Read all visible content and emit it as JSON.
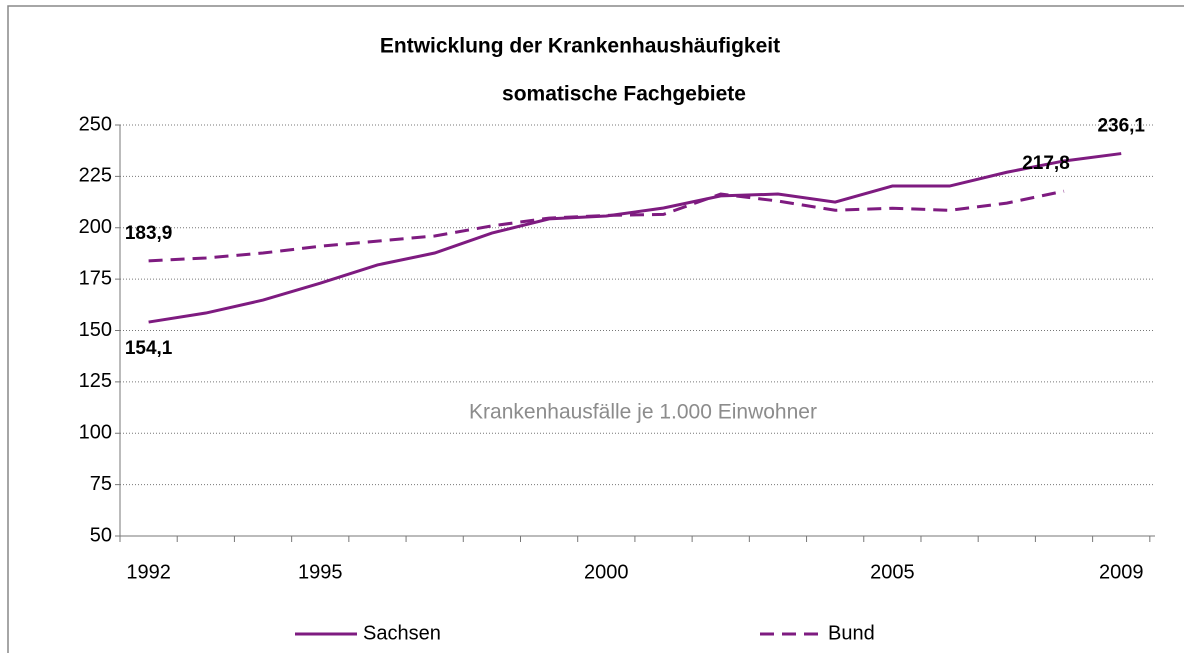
{
  "chart_data": {
    "type": "line",
    "title": "Entwicklung der Krankenhaushäufigkeit",
    "subtitle": "somatische Fachgebiete",
    "annotation": "Krankenhausfälle je 1.000 Einwohner",
    "categories": [
      "1992",
      null,
      null,
      "1995",
      null,
      null,
      null,
      null,
      "2000",
      null,
      null,
      null,
      null,
      "2005",
      null,
      null,
      null,
      "2009"
    ],
    "series": [
      {
        "name": "Sachsen",
        "color": "#7e1b80",
        "dash": false,
        "values": [
          154.1,
          158.5,
          164.8,
          173,
          181.9,
          187.7,
          197.4,
          204.3,
          205.7,
          209.6,
          215.5,
          216.4,
          212.5,
          220.3,
          220.3,
          227,
          232.5,
          236.1
        ],
        "value_labels": [
          "154,1",
          null,
          null,
          null,
          null,
          null,
          null,
          null,
          null,
          null,
          null,
          null,
          null,
          null,
          null,
          null,
          null,
          "236,1"
        ]
      },
      {
        "name": "Bund",
        "color": "#7e1b80",
        "dash": true,
        "values": [
          183.9,
          185.3,
          187.7,
          191,
          193.5,
          196,
          200.9,
          204.7,
          206,
          206.5,
          216.4,
          213,
          208.5,
          209.5,
          208.5,
          212,
          217.8,
          null
        ],
        "value_labels": [
          "183,9",
          null,
          null,
          null,
          null,
          null,
          null,
          null,
          null,
          null,
          null,
          null,
          null,
          null,
          null,
          null,
          "217,8",
          null
        ]
      }
    ],
    "ylim": [
      50,
      250
    ],
    "yticks": [
      50,
      75,
      100,
      125,
      150,
      175,
      200,
      225,
      250
    ],
    "grid": true
  }
}
